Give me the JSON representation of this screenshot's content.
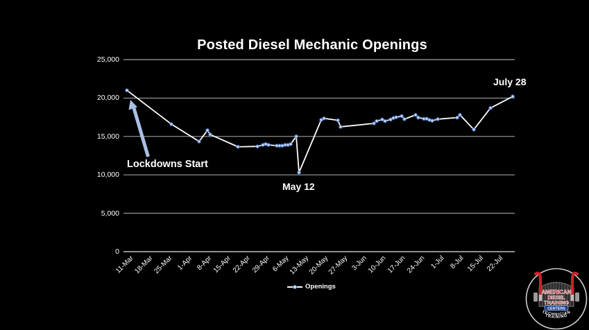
{
  "slide": {
    "background": "#000000"
  },
  "chart": {
    "title": "Posted Diesel Mechanic Openings",
    "legend_label": "Openings",
    "annotations": {
      "lockdowns_label": "Lockdowns Start",
      "low_label": "May 12",
      "high_label": "July 28"
    },
    "colors": {
      "text": "#ffffff",
      "gridline": "#c9c9c9",
      "axis_line": "#e8e8e8",
      "series_line": "#ffffff",
      "marker_fill": "#cfdcf3",
      "marker_stroke": "#4472c4",
      "arrow": "#a9c0e4"
    }
  },
  "chart_data": {
    "type": "line",
    "title": "Posted Diesel Mechanic Openings",
    "xlabel": "",
    "ylabel": "",
    "ylim": [
      0,
      25000
    ],
    "grid": true,
    "legend_position": "bottom-center",
    "y_ticks": [
      {
        "label": "0",
        "value": 0
      },
      {
        "label": "5,000",
        "value": 5000
      },
      {
        "label": "10,000",
        "value": 10000
      },
      {
        "label": "15,000",
        "value": 15000
      },
      {
        "label": "20,000",
        "value": 20000
      },
      {
        "label": "25,000",
        "value": 25000
      }
    ],
    "x_tick_labels": [
      "11-Mar",
      "18-Mar",
      "25-Mar",
      "1-Apr",
      "8-Apr",
      "15-Apr",
      "22-Apr",
      "29-Apr",
      "6-May",
      "13-May",
      "20-May",
      "27-May",
      "3-Jun",
      "10-Jun",
      "17-Jun",
      "24-Jun",
      "1-Jul",
      "8-Jul",
      "15-Jul",
      "22-Jul"
    ],
    "x_tick_interval_days": 7,
    "x_axis_span_days": 140,
    "series": [
      {
        "name": "Openings",
        "points": [
          {
            "date": "11-Mar",
            "day": 0,
            "value": 21000
          },
          {
            "date": "27-Mar",
            "day": 16,
            "value": 16600
          },
          {
            "date": "6-Apr",
            "day": 26,
            "value": 14350
          },
          {
            "date": "9-Apr",
            "day": 29,
            "value": 15800
          },
          {
            "date": "10-Apr",
            "day": 30,
            "value": 15250
          },
          {
            "date": "20-Apr",
            "day": 40,
            "value": 13650
          },
          {
            "date": "27-Apr",
            "day": 47,
            "value": 13700
          },
          {
            "date": "29-Apr",
            "day": 49,
            "value": 13900
          },
          {
            "date": "30-Apr",
            "day": 50,
            "value": 14000
          },
          {
            "date": "1-May",
            "day": 51,
            "value": 13900
          },
          {
            "date": "4-May",
            "day": 54,
            "value": 13800
          },
          {
            "date": "5-May",
            "day": 55,
            "value": 13800
          },
          {
            "date": "6-May",
            "day": 56,
            "value": 13800
          },
          {
            "date": "7-May",
            "day": 57,
            "value": 13900
          },
          {
            "date": "8-May",
            "day": 58,
            "value": 13900
          },
          {
            "date": "9-May",
            "day": 59,
            "value": 14000
          },
          {
            "date": "11-May",
            "day": 61,
            "value": 15000
          },
          {
            "date": "12-May",
            "day": 62,
            "value": 10300
          },
          {
            "date": "20-May",
            "day": 70,
            "value": 17150
          },
          {
            "date": "21-May",
            "day": 71,
            "value": 17350
          },
          {
            "date": "26-May",
            "day": 76,
            "value": 17100
          },
          {
            "date": "27-May",
            "day": 77,
            "value": 16250
          },
          {
            "date": "8-Jun",
            "day": 89,
            "value": 16700
          },
          {
            "date": "9-Jun",
            "day": 90,
            "value": 17000
          },
          {
            "date": "11-Jun",
            "day": 92,
            "value": 17200
          },
          {
            "date": "12-Jun",
            "day": 93,
            "value": 17000
          },
          {
            "date": "14-Jun",
            "day": 95,
            "value": 17200
          },
          {
            "date": "15-Jun",
            "day": 96,
            "value": 17400
          },
          {
            "date": "16-Jun",
            "day": 97,
            "value": 17500
          },
          {
            "date": "18-Jun",
            "day": 99,
            "value": 17650
          },
          {
            "date": "19-Jun",
            "day": 100,
            "value": 17250
          },
          {
            "date": "23-Jun",
            "day": 104,
            "value": 17800
          },
          {
            "date": "24-Jun",
            "day": 105,
            "value": 17450
          },
          {
            "date": "26-Jun",
            "day": 107,
            "value": 17300
          },
          {
            "date": "27-Jun",
            "day": 108,
            "value": 17300
          },
          {
            "date": "28-Jun",
            "day": 109,
            "value": 17150
          },
          {
            "date": "29-Jun",
            "day": 110,
            "value": 17050
          },
          {
            "date": "1-Jul",
            "day": 112,
            "value": 17250
          },
          {
            "date": "8-Jul",
            "day": 119,
            "value": 17450
          },
          {
            "date": "9-Jul",
            "day": 120,
            "value": 17800
          },
          {
            "date": "14-Jul",
            "day": 125,
            "value": 15900
          },
          {
            "date": "20-Jul",
            "day": 131,
            "value": 18700
          },
          {
            "date": "28-Jul",
            "day": 139,
            "value": 20200
          }
        ]
      }
    ],
    "annotations": [
      {
        "text": "Lockdowns Start",
        "type": "arrow-callout",
        "target_date": "11-Mar",
        "target_value": 21000
      },
      {
        "text": "May 12",
        "type": "label",
        "target_date": "12-May",
        "target_value": 10300
      },
      {
        "text": "July 28",
        "type": "label",
        "target_date": "28-Jul",
        "target_value": 20200
      }
    ]
  },
  "logo": {
    "name": "American Diesel Training Centers emblem",
    "line1": "AMERICAN",
    "line2": "DIESEL",
    "line3": "TRAINING",
    "line4": "CENTERS",
    "arc_line1": "TECHNICIAN",
    "arc_line2": "TRAINING",
    "colors": {
      "red": "#cc2127",
      "blue": "#1c3f94",
      "white": "#ffffff",
      "gray": "#8a8a8a"
    }
  }
}
